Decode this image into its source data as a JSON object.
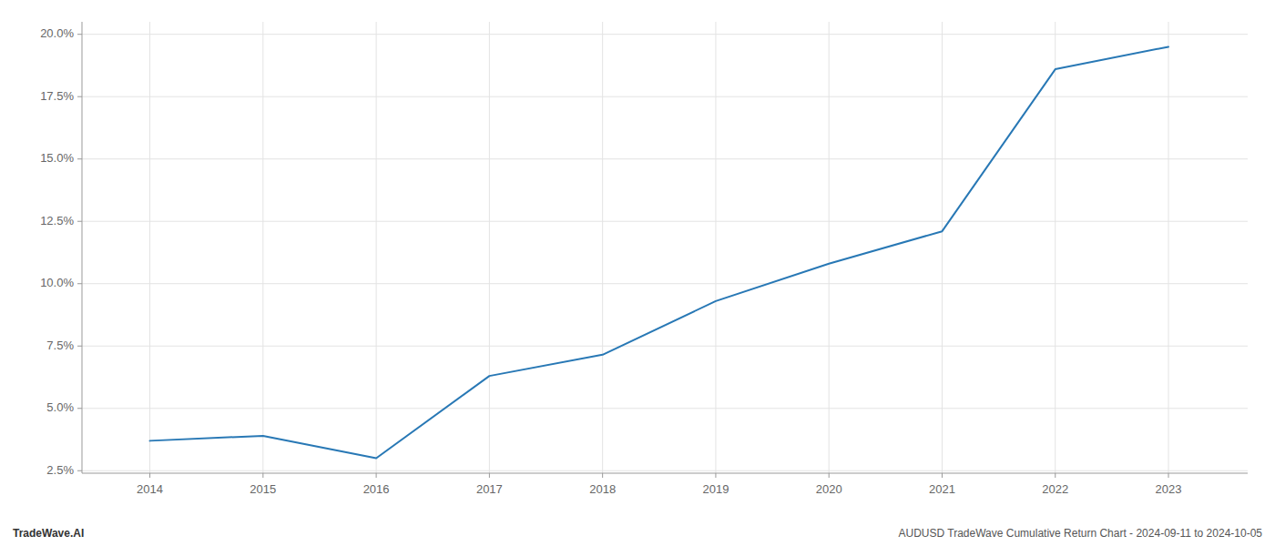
{
  "chart_data": {
    "type": "line",
    "x": [
      2014,
      2015,
      2016,
      2017,
      2018,
      2019,
      2020,
      2021,
      2022,
      2023
    ],
    "values": [
      3.7,
      3.9,
      3.0,
      6.3,
      7.15,
      9.3,
      10.8,
      12.1,
      18.6,
      19.5
    ],
    "color": "#2878b5",
    "xlim": [
      2013.4,
      2023.7
    ],
    "xticks": [
      2014,
      2015,
      2016,
      2017,
      2018,
      2019,
      2020,
      2021,
      2022,
      2023
    ],
    "ylim": [
      2.4,
      20.5
    ],
    "yticks": [
      {
        "value": 2.5,
        "label": "2.5%"
      },
      {
        "value": 5.0,
        "label": "5.0%"
      },
      {
        "value": 7.5,
        "label": "7.5%"
      },
      {
        "value": 10.0,
        "label": "10.0%"
      },
      {
        "value": 12.5,
        "label": "12.5%"
      },
      {
        "value": 15.0,
        "label": "15.0%"
      },
      {
        "value": 17.5,
        "label": "17.5%"
      },
      {
        "value": 20.0,
        "label": "20.0%"
      }
    ],
    "grid": true,
    "annotations": [
      "TradeWave.AI",
      "AUDUSD TradeWave Cumulative Return Chart - 2024-09-11 to 2024-10-05"
    ]
  }
}
